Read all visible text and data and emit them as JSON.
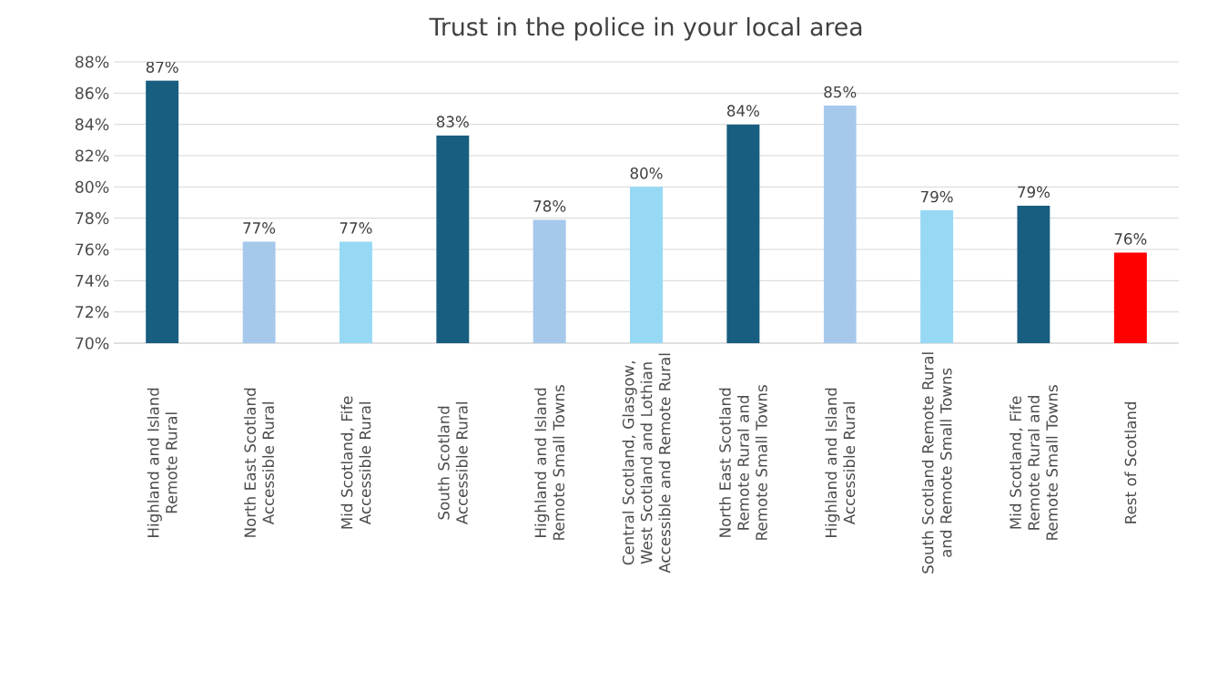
{
  "chart_data": {
    "type": "bar",
    "title": "Trust in the police in your local area",
    "categories": [
      "Highland and Island Remote Rural",
      "North East Scotland Accessible Rural",
      "Mid Scotland, Fife Accessible Rural",
      "South Scotland Accessible Rural",
      "Highland and Island Remote Small Towns",
      "Central Scotland, Glasgow, West Scotland and Lothian Accessible and Remote Rural",
      "North East Scotland Remote Rural and Remote Small Towns",
      "Highland and Island Accessible Rural",
      "South Scotland Remote Rural and Remote Small Towns",
      "Mid Scotland, Fife Remote Rural and Remote Small Towns",
      "Rest of Scotland"
    ],
    "values": [
      86.8,
      76.5,
      76.5,
      83.3,
      77.9,
      80.0,
      84.0,
      85.2,
      78.5,
      78.8,
      75.8
    ],
    "value_labels": [
      "87%",
      "77%",
      "77%",
      "83%",
      "78%",
      "80%",
      "84%",
      "85%",
      "79%",
      "79%",
      "76%"
    ],
    "colors": [
      "#175e80",
      "#a6c8eb",
      "#97d9f5",
      "#175e80",
      "#a6c8eb",
      "#97d9f5",
      "#175e80",
      "#a6c8eb",
      "#97d9f5",
      "#175e80",
      "#ff0000"
    ],
    "ylim": [
      70,
      88
    ],
    "yticks": [
      {
        "value": 70,
        "label": "70%"
      },
      {
        "value": 72,
        "label": "72%"
      },
      {
        "value": 74,
        "label": "74%"
      },
      {
        "value": 76,
        "label": "76%"
      },
      {
        "value": 78,
        "label": "78%"
      },
      {
        "value": 80,
        "label": "80%"
      },
      {
        "value": 82,
        "label": "82%"
      },
      {
        "value": 84,
        "label": "84%"
      },
      {
        "value": 86,
        "label": "86%"
      },
      {
        "value": 88,
        "label": "88%"
      }
    ],
    "grid": "y"
  }
}
